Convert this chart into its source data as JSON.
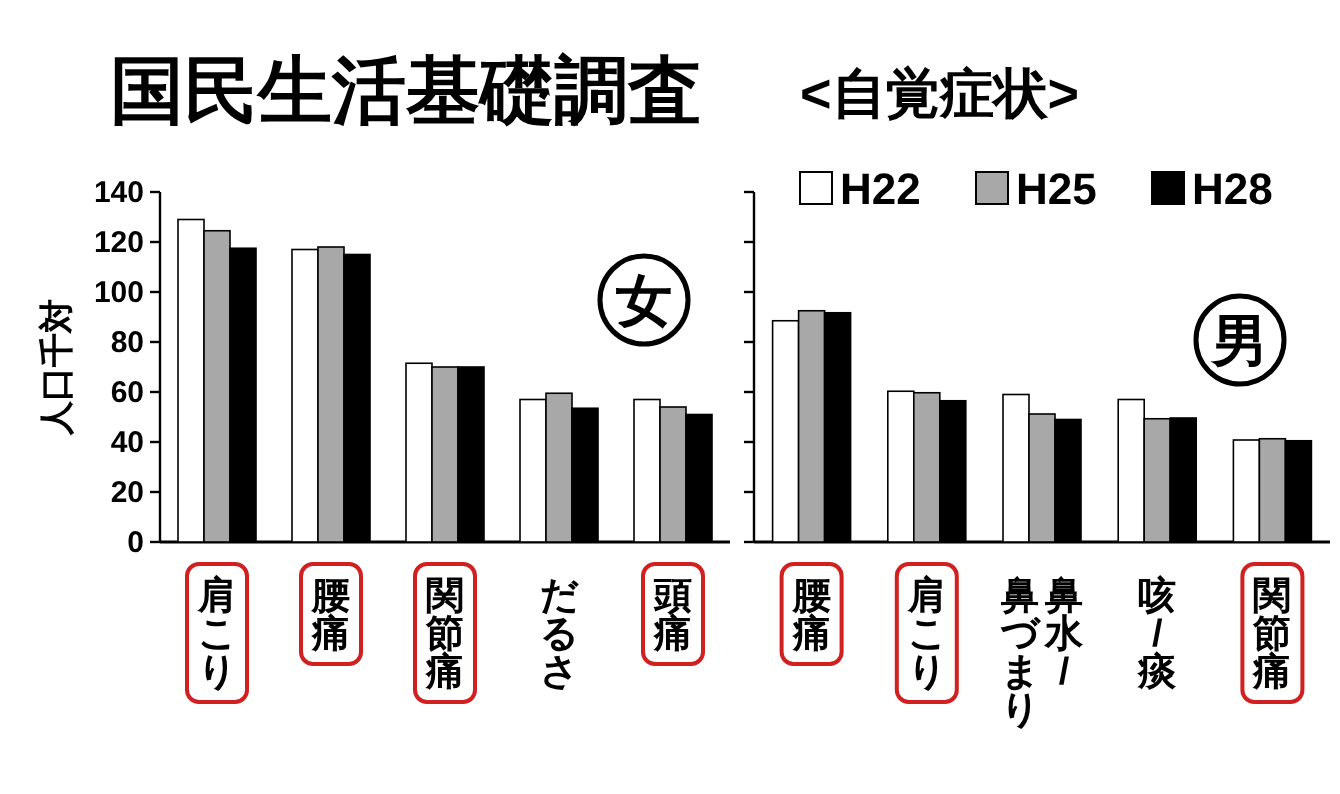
{
  "chart_data": [
    {
      "type": "bar",
      "title": "国民生活基礎調査",
      "ylabel": "人口千対",
      "categories": [
        "肩こり",
        "腰痛",
        "関節痛",
        "だるさ",
        "頭痛"
      ],
      "series": [
        {
          "color": "#ffffff",
          "values": [
            129,
            117,
            71.5,
            57,
            57
          ]
        },
        {
          "color": "#a8a8a8",
          "values": [
            124.5,
            118,
            70,
            59.5,
            54
          ]
        },
        {
          "color": "#000000",
          "values": [
            117.5,
            115,
            70,
            53.5,
            51
          ]
        }
      ],
      "ylim": [
        0,
        140
      ],
      "yticks": [
        0,
        20,
        40,
        60,
        80,
        100,
        120,
        140
      ],
      "annotations": [
        "女"
      ]
    },
    {
      "type": "bar",
      "title": "<自覚症状>",
      "categories": [
        "腰痛",
        "肩こり",
        "鼻水/鼻づまり",
        "咳/痰",
        "関節痛"
      ],
      "series": [
        {
          "name": "H22",
          "color": "#ffffff",
          "values": [
            88.5,
            60.3,
            59,
            57,
            40.8
          ]
        },
        {
          "name": "H25",
          "color": "#a8a8a8",
          "values": [
            92.5,
            59.7,
            51.2,
            49.3,
            41.3
          ]
        },
        {
          "name": "H28",
          "color": "#000000",
          "values": [
            91.7,
            56.5,
            49,
            49.6,
            40.5
          ]
        }
      ],
      "ylim": [
        0,
        140
      ],
      "yticks": [
        {
          "value": 0,
          "label": null
        },
        {
          "value": 20,
          "label": null
        },
        {
          "value": 40,
          "label": null
        },
        {
          "value": 60,
          "label": null
        },
        {
          "value": 80,
          "label": null
        },
        {
          "value": 100,
          "label": null
        },
        {
          "value": 120,
          "label": null
        },
        {
          "value": 140,
          "label": null
        }
      ],
      "tick_labels": "x",
      "legend": "top",
      "annotations": [
        "男"
      ]
    }
  ]
}
